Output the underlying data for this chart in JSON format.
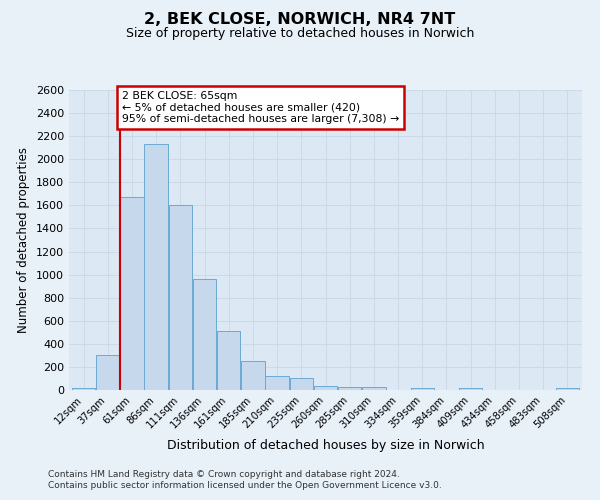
{
  "title": "2, BEK CLOSE, NORWICH, NR4 7NT",
  "subtitle": "Size of property relative to detached houses in Norwich",
  "xlabel": "Distribution of detached houses by size in Norwich",
  "ylabel": "Number of detached properties",
  "bar_color": "#c5d8ec",
  "bar_edge_color": "#6aaad4",
  "bin_labels": [
    "12sqm",
    "37sqm",
    "61sqm",
    "86sqm",
    "111sqm",
    "136sqm",
    "161sqm",
    "185sqm",
    "210sqm",
    "235sqm",
    "260sqm",
    "285sqm",
    "310sqm",
    "334sqm",
    "359sqm",
    "384sqm",
    "409sqm",
    "434sqm",
    "458sqm",
    "483sqm",
    "508sqm"
  ],
  "heights": [
    20,
    300,
    1670,
    2130,
    1600,
    960,
    510,
    255,
    120,
    100,
    35,
    25,
    25,
    0,
    20,
    0,
    20,
    0,
    0,
    0,
    20
  ],
  "vline_x_idx": 2,
  "vline_color": "#cc0000",
  "annotation_line1": "2 BEK CLOSE: 65sqm",
  "annotation_line2": "← 5% of detached houses are smaller (420)",
  "annotation_line3": "95% of semi-detached houses are larger (7,308) →",
  "annotation_box_color": "#cc0000",
  "ylim": [
    0,
    2600
  ],
  "yticks": [
    0,
    200,
    400,
    600,
    800,
    1000,
    1200,
    1400,
    1600,
    1800,
    2000,
    2200,
    2400,
    2600
  ],
  "grid_color": "#c8d8e8",
  "plot_bg_color": "#dce8f4",
  "fig_bg_color": "#e8f0f8",
  "footer_line1": "Contains HM Land Registry data © Crown copyright and database right 2024.",
  "footer_line2": "Contains public sector information licensed under the Open Government Licence v3.0."
}
